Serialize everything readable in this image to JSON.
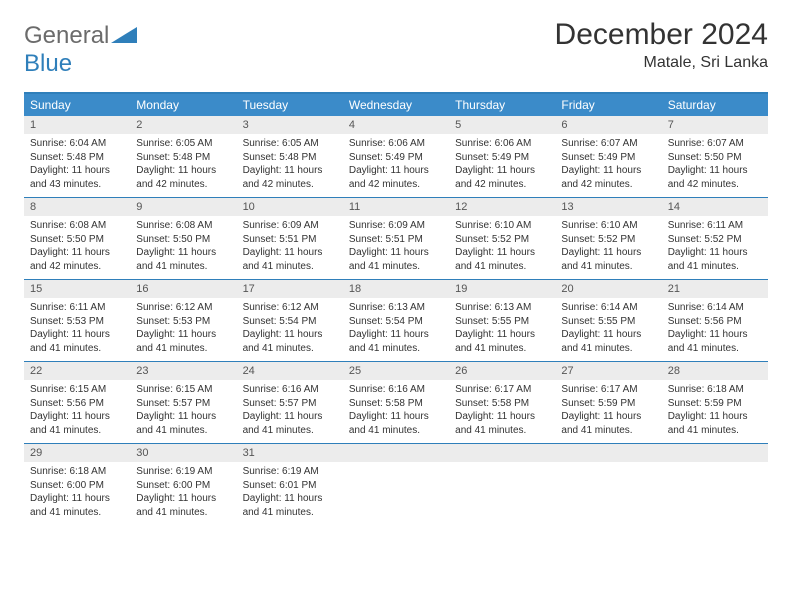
{
  "logo": {
    "text1": "General",
    "text2": "Blue",
    "color1": "#6b6b6b",
    "color2": "#2f7fba"
  },
  "title": "December 2024",
  "location": "Matale, Sri Lanka",
  "colors": {
    "header_bg": "#3b8bc9",
    "border": "#2f7fba",
    "daynum_bg": "#ececec",
    "text": "#333333"
  },
  "day_names": [
    "Sunday",
    "Monday",
    "Tuesday",
    "Wednesday",
    "Thursday",
    "Friday",
    "Saturday"
  ],
  "weeks": [
    [
      {
        "n": "1",
        "sr": "6:04 AM",
        "ss": "5:48 PM",
        "dl": "11 hours and 43 minutes."
      },
      {
        "n": "2",
        "sr": "6:05 AM",
        "ss": "5:48 PM",
        "dl": "11 hours and 42 minutes."
      },
      {
        "n": "3",
        "sr": "6:05 AM",
        "ss": "5:48 PM",
        "dl": "11 hours and 42 minutes."
      },
      {
        "n": "4",
        "sr": "6:06 AM",
        "ss": "5:49 PM",
        "dl": "11 hours and 42 minutes."
      },
      {
        "n": "5",
        "sr": "6:06 AM",
        "ss": "5:49 PM",
        "dl": "11 hours and 42 minutes."
      },
      {
        "n": "6",
        "sr": "6:07 AM",
        "ss": "5:49 PM",
        "dl": "11 hours and 42 minutes."
      },
      {
        "n": "7",
        "sr": "6:07 AM",
        "ss": "5:50 PM",
        "dl": "11 hours and 42 minutes."
      }
    ],
    [
      {
        "n": "8",
        "sr": "6:08 AM",
        "ss": "5:50 PM",
        "dl": "11 hours and 42 minutes."
      },
      {
        "n": "9",
        "sr": "6:08 AM",
        "ss": "5:50 PM",
        "dl": "11 hours and 41 minutes."
      },
      {
        "n": "10",
        "sr": "6:09 AM",
        "ss": "5:51 PM",
        "dl": "11 hours and 41 minutes."
      },
      {
        "n": "11",
        "sr": "6:09 AM",
        "ss": "5:51 PM",
        "dl": "11 hours and 41 minutes."
      },
      {
        "n": "12",
        "sr": "6:10 AM",
        "ss": "5:52 PM",
        "dl": "11 hours and 41 minutes."
      },
      {
        "n": "13",
        "sr": "6:10 AM",
        "ss": "5:52 PM",
        "dl": "11 hours and 41 minutes."
      },
      {
        "n": "14",
        "sr": "6:11 AM",
        "ss": "5:52 PM",
        "dl": "11 hours and 41 minutes."
      }
    ],
    [
      {
        "n": "15",
        "sr": "6:11 AM",
        "ss": "5:53 PM",
        "dl": "11 hours and 41 minutes."
      },
      {
        "n": "16",
        "sr": "6:12 AM",
        "ss": "5:53 PM",
        "dl": "11 hours and 41 minutes."
      },
      {
        "n": "17",
        "sr": "6:12 AM",
        "ss": "5:54 PM",
        "dl": "11 hours and 41 minutes."
      },
      {
        "n": "18",
        "sr": "6:13 AM",
        "ss": "5:54 PM",
        "dl": "11 hours and 41 minutes."
      },
      {
        "n": "19",
        "sr": "6:13 AM",
        "ss": "5:55 PM",
        "dl": "11 hours and 41 minutes."
      },
      {
        "n": "20",
        "sr": "6:14 AM",
        "ss": "5:55 PM",
        "dl": "11 hours and 41 minutes."
      },
      {
        "n": "21",
        "sr": "6:14 AM",
        "ss": "5:56 PM",
        "dl": "11 hours and 41 minutes."
      }
    ],
    [
      {
        "n": "22",
        "sr": "6:15 AM",
        "ss": "5:56 PM",
        "dl": "11 hours and 41 minutes."
      },
      {
        "n": "23",
        "sr": "6:15 AM",
        "ss": "5:57 PM",
        "dl": "11 hours and 41 minutes."
      },
      {
        "n": "24",
        "sr": "6:16 AM",
        "ss": "5:57 PM",
        "dl": "11 hours and 41 minutes."
      },
      {
        "n": "25",
        "sr": "6:16 AM",
        "ss": "5:58 PM",
        "dl": "11 hours and 41 minutes."
      },
      {
        "n": "26",
        "sr": "6:17 AM",
        "ss": "5:58 PM",
        "dl": "11 hours and 41 minutes."
      },
      {
        "n": "27",
        "sr": "6:17 AM",
        "ss": "5:59 PM",
        "dl": "11 hours and 41 minutes."
      },
      {
        "n": "28",
        "sr": "6:18 AM",
        "ss": "5:59 PM",
        "dl": "11 hours and 41 minutes."
      }
    ],
    [
      {
        "n": "29",
        "sr": "6:18 AM",
        "ss": "6:00 PM",
        "dl": "11 hours and 41 minutes."
      },
      {
        "n": "30",
        "sr": "6:19 AM",
        "ss": "6:00 PM",
        "dl": "11 hours and 41 minutes."
      },
      {
        "n": "31",
        "sr": "6:19 AM",
        "ss": "6:01 PM",
        "dl": "11 hours and 41 minutes."
      },
      null,
      null,
      null,
      null
    ]
  ],
  "labels": {
    "sunrise": "Sunrise: ",
    "sunset": "Sunset: ",
    "daylight": "Daylight: "
  }
}
